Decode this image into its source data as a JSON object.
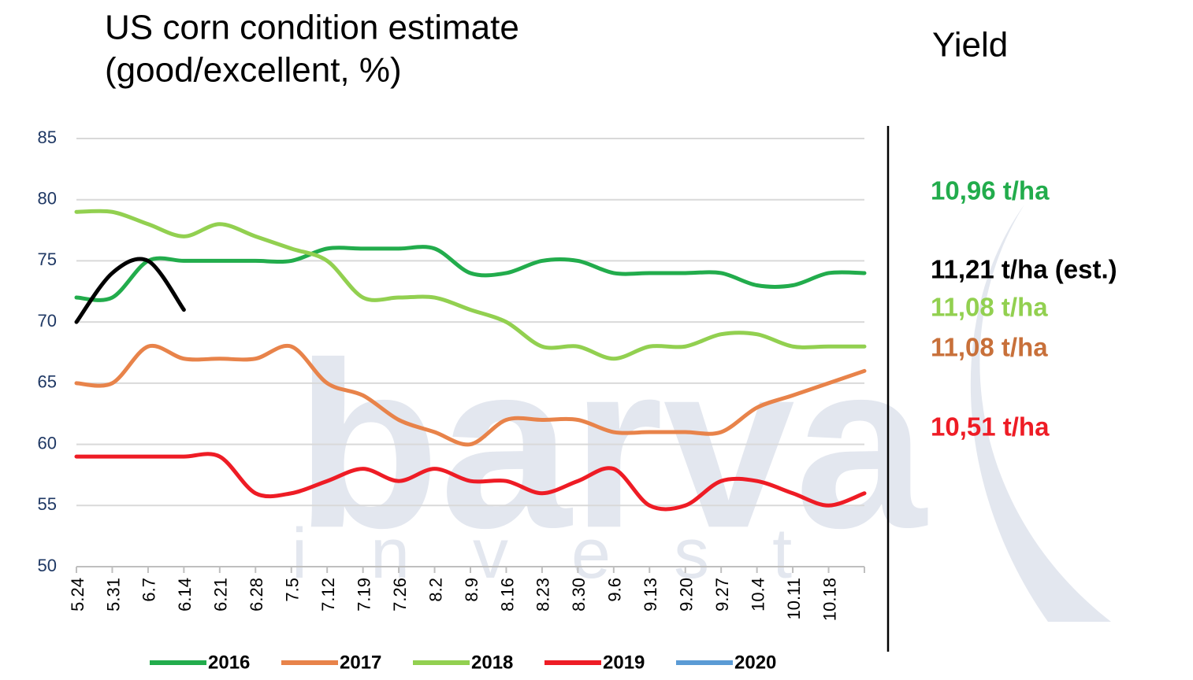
{
  "chart_data": {
    "type": "line",
    "title": "US corn condition estimate",
    "subtitle": "(good/excellent, %)",
    "categories": [
      "5.24",
      "5.31",
      "6.7",
      "6.14",
      "6.21",
      "6.28",
      "7.5",
      "7.12",
      "7.19",
      "7.26",
      "8.2",
      "8.9",
      "8.16",
      "8.23",
      "8.30",
      "9.6",
      "9.13",
      "9.20",
      "9.27",
      "10.4",
      "10.11",
      "10.18",
      null
    ],
    "series": [
      {
        "name": "2016",
        "color": "#22ac4c",
        "values": [
          72,
          72,
          75,
          75,
          75,
          75,
          75,
          76,
          76,
          76,
          76,
          74,
          74,
          75,
          75,
          74,
          74,
          74,
          74,
          73,
          73,
          74,
          74
        ]
      },
      {
        "name": "2017",
        "color": "#e8834a",
        "values": [
          65,
          65,
          68,
          67,
          67,
          67,
          68,
          65,
          64,
          62,
          61,
          60,
          62,
          62,
          62,
          61,
          61,
          61,
          61,
          63,
          64,
          65,
          66
        ]
      },
      {
        "name": "2018",
        "color": "#92d050",
        "values": [
          79,
          79,
          78,
          77,
          78,
          77,
          76,
          75,
          72,
          72,
          72,
          71,
          70,
          68,
          68,
          67,
          68,
          68,
          69,
          69,
          68,
          68,
          68
        ]
      },
      {
        "name": "2019",
        "color": "#ee1c25",
        "values": [
          59,
          59,
          59,
          59,
          59,
          56,
          56,
          57,
          58,
          57,
          58,
          57,
          57,
          56,
          57,
          58,
          55,
          55,
          57,
          57,
          56,
          55,
          56
        ]
      },
      {
        "name": "2020",
        "color": "#5b9bd5",
        "line_color": "#000000",
        "values": [
          70,
          74,
          75,
          71,
          null,
          null,
          null,
          null,
          null,
          null,
          null,
          null,
          null,
          null,
          null,
          null,
          null,
          null,
          null,
          null,
          null,
          null,
          null
        ]
      }
    ],
    "ylim": [
      50,
      85
    ],
    "yticks": [
      50,
      55,
      60,
      65,
      70,
      75,
      80,
      85
    ],
    "grid": true,
    "legend": "bottom",
    "yield_title": "Yield",
    "annotations": [
      {
        "text": "10,96 t/ha",
        "color": "#22ac4c"
      },
      {
        "text": "11,21 t/ha (est.)",
        "color": "#000000"
      },
      {
        "text": "11,08 t/ha",
        "color": "#92d050"
      },
      {
        "text": "11,08 t/ha",
        "color": "#c8703a"
      },
      {
        "text": "10,51 t/ha",
        "color": "#ee1c25"
      }
    ],
    "watermark": [
      "barva",
      "invest"
    ]
  }
}
